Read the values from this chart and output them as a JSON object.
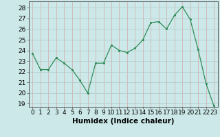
{
  "x": [
    0,
    1,
    2,
    3,
    4,
    5,
    6,
    7,
    8,
    9,
    10,
    11,
    12,
    13,
    14,
    15,
    16,
    17,
    18,
    19,
    20,
    21,
    22,
    23
  ],
  "y": [
    23.7,
    22.2,
    22.2,
    23.3,
    22.8,
    22.2,
    21.2,
    20.0,
    22.8,
    22.8,
    24.5,
    24.0,
    23.8,
    24.2,
    25.0,
    26.6,
    26.7,
    26.0,
    27.3,
    28.1,
    26.9,
    24.1,
    20.9,
    18.8
  ],
  "line_color": "#2e8b57",
  "marker": ".",
  "bg_color": "#cce8e8",
  "grid_color": "#b0c8c8",
  "grid_color_red": "#d4aaaa",
  "xlabel": "Humidex (Indice chaleur)",
  "ylim_min": 18.7,
  "ylim_max": 28.6,
  "xlim_min": -0.5,
  "xlim_max": 23.5,
  "yticks": [
    19,
    20,
    21,
    22,
    23,
    24,
    25,
    26,
    27,
    28
  ],
  "xticks": [
    0,
    1,
    2,
    3,
    4,
    5,
    6,
    7,
    8,
    9,
    10,
    11,
    12,
    13,
    14,
    15,
    16,
    17,
    18,
    19,
    20,
    21,
    22,
    23
  ],
  "xlabel_fontsize": 7.5,
  "tick_fontsize": 6.5
}
